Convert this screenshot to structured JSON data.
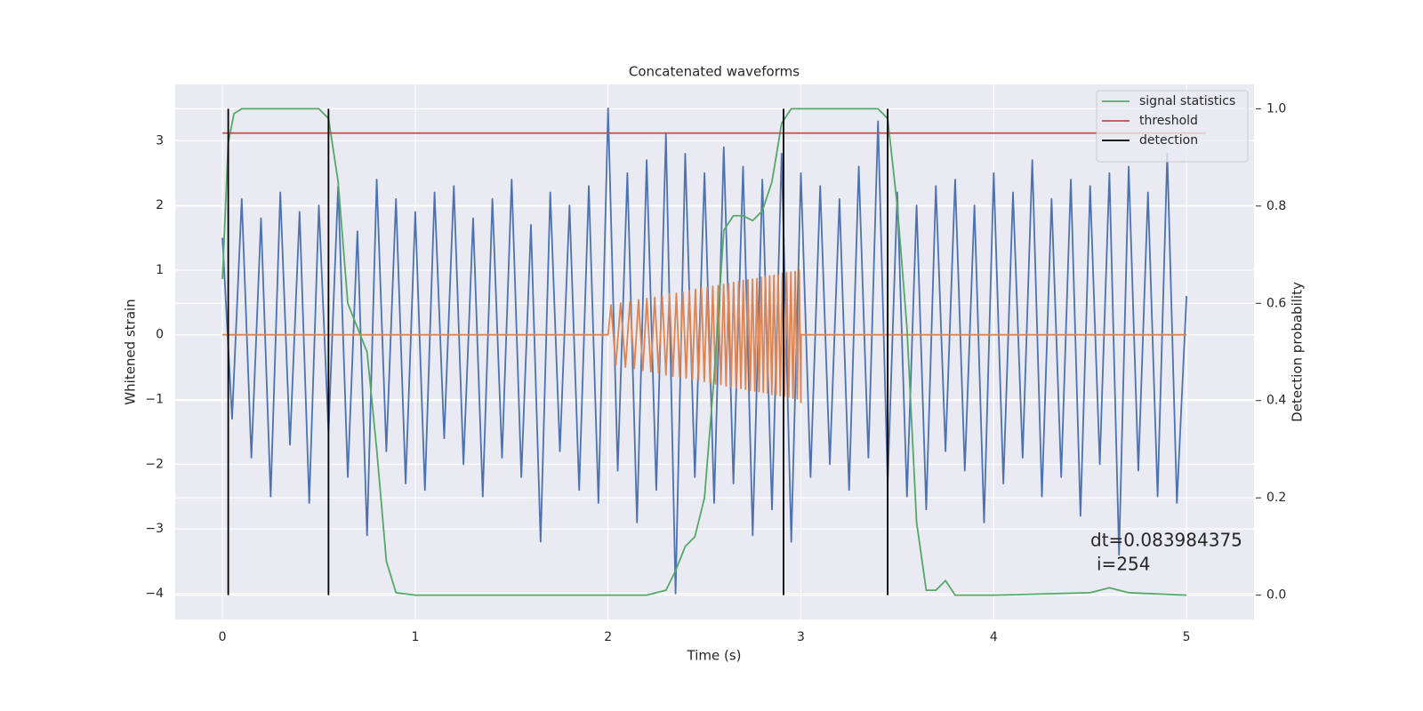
{
  "chart_data": {
    "type": "line",
    "title": "Concatenated waveforms",
    "xlabel": "Time (s)",
    "ylabel": "Whitened strain",
    "y2label": "Detection probability",
    "xlim": [
      -0.245,
      5.35
    ],
    "ylim": [
      -4.4,
      3.87
    ],
    "y2lim": [
      -0.05,
      1.05
    ],
    "xticks": [
      0,
      1,
      2,
      3,
      4,
      5
    ],
    "yticks": [
      {
        "value": -4,
        "label": "−4"
      },
      {
        "value": -3,
        "label": "−3"
      },
      {
        "value": -2,
        "label": "−2"
      },
      {
        "value": -1,
        "label": "−1"
      },
      0,
      1,
      2,
      3
    ],
    "y2ticks": [
      {
        "value": 0,
        "label": "0.0"
      },
      {
        "value": 0.2,
        "label": "0.2"
      },
      {
        "value": 0.4,
        "label": "0.4"
      },
      {
        "value": 0.6,
        "label": "0.6"
      },
      {
        "value": 0.8,
        "label": "0.8"
      },
      {
        "value": 1,
        "label": "1.0"
      }
    ],
    "grid": true,
    "legend_loc": "upper right",
    "series": [
      {
        "color": "#4c72b0",
        "axis": "y",
        "x": [
          0,
          0.05,
          0.1,
          0.15,
          0.2,
          0.25,
          0.3,
          0.35,
          0.4,
          0.45,
          0.5,
          0.55,
          0.6,
          0.65,
          0.7,
          0.75,
          0.8,
          0.85,
          0.9,
          0.95,
          1,
          1.05,
          1.1,
          1.15,
          1.2,
          1.25,
          1.3,
          1.35,
          1.4,
          1.45,
          1.5,
          1.55,
          1.6,
          1.65,
          1.7,
          1.75,
          1.8,
          1.85,
          1.9,
          1.95,
          2,
          2.05,
          2.1,
          2.15,
          2.2,
          2.25,
          2.3,
          2.35,
          2.4,
          2.45,
          2.5,
          2.55,
          2.6,
          2.65,
          2.7,
          2.75,
          2.8,
          2.85,
          2.9,
          2.95,
          3,
          3.05,
          3.1,
          3.15,
          3.2,
          3.25,
          3.3,
          3.35,
          3.4,
          3.45,
          3.5,
          3.55,
          3.6,
          3.65,
          3.7,
          3.75,
          3.8,
          3.85,
          3.9,
          3.95,
          4,
          4.05,
          4.1,
          4.15,
          4.2,
          4.25,
          4.3,
          4.35,
          4.4,
          4.45,
          4.5,
          4.55,
          4.6,
          4.65,
          4.7,
          4.75,
          4.8,
          4.85,
          4.9,
          4.95,
          5
        ],
        "values": [
          1.5,
          -1.3,
          2.1,
          -1.9,
          1.8,
          -2.5,
          2.2,
          -1.7,
          1.9,
          -2.6,
          2.0,
          -1.5,
          2.3,
          -2.2,
          1.6,
          -3.1,
          2.4,
          -1.8,
          2.1,
          -2.3,
          1.9,
          -2.4,
          2.2,
          -1.6,
          2.3,
          -2.0,
          1.8,
          -2.5,
          2.1,
          -1.9,
          2.4,
          -2.2,
          1.7,
          -3.2,
          2.2,
          -1.8,
          2.0,
          -2.4,
          2.3,
          -2.6,
          3.5,
          -2.1,
          2.5,
          -2.9,
          2.7,
          -2.4,
          3.1,
          -4.0,
          2.8,
          -2.2,
          2.5,
          -2.6,
          2.9,
          -2.3,
          2.6,
          -3.1,
          2.4,
          -2.7,
          2.8,
          -3.2,
          2.5,
          -2.2,
          2.3,
          -2.0,
          2.1,
          -2.4,
          2.6,
          -1.9,
          3.3,
          -2.3,
          2.2,
          -2.5,
          2.0,
          -2.7,
          2.3,
          -1.8,
          2.4,
          -2.1,
          2.0,
          -2.9,
          2.5,
          -2.3,
          2.2,
          -1.9,
          2.7,
          -2.5,
          2.1,
          -2.2,
          2.4,
          -2.8,
          2.3,
          -2.0,
          2.5,
          -3.4,
          2.6,
          -2.1,
          2.2,
          -2.5,
          2.8,
          -2.6,
          0.6
        ]
      },
      {
        "color": "#dd8452",
        "axis": "y",
        "x": [
          0,
          2.0,
          2.015,
          2.04,
          2.065,
          2.09,
          2.113,
          2.136,
          2.158,
          2.18,
          2.201,
          2.222,
          2.242,
          2.262,
          2.281,
          2.3,
          2.318,
          2.336,
          2.354,
          2.371,
          2.388,
          2.405,
          2.421,
          2.437,
          2.453,
          2.469,
          2.484,
          2.499,
          2.514,
          2.529,
          2.543,
          2.557,
          2.571,
          2.585,
          2.599,
          2.612,
          2.625,
          2.638,
          2.651,
          2.664,
          2.677,
          2.689,
          2.701,
          2.713,
          2.725,
          2.737,
          2.749,
          2.761,
          2.772,
          2.783,
          2.794,
          2.805,
          2.816,
          2.827,
          2.838,
          2.849,
          2.86,
          2.871,
          2.882,
          2.893,
          2.904,
          2.915,
          2.926,
          2.937,
          2.948,
          2.959,
          2.97,
          2.981,
          2.992,
          3.0,
          3.001,
          5.0
        ],
        "values": [
          0,
          0,
          0.46,
          -0.47,
          0.49,
          -0.5,
          0.51,
          -0.52,
          0.54,
          -0.55,
          0.56,
          -0.57,
          0.58,
          -0.59,
          0.6,
          -0.62,
          0.63,
          -0.64,
          0.64,
          -0.65,
          0.66,
          -0.67,
          0.68,
          -0.69,
          0.7,
          -0.71,
          0.72,
          -0.72,
          0.73,
          -0.74,
          0.75,
          -0.76,
          0.76,
          -0.77,
          0.78,
          -0.79,
          0.79,
          -0.8,
          0.81,
          -0.82,
          0.82,
          -0.83,
          0.84,
          -0.84,
          0.85,
          -0.86,
          0.86,
          -0.87,
          0.87,
          -0.88,
          0.89,
          -0.89,
          0.9,
          -0.9,
          0.91,
          -0.92,
          0.92,
          -0.93,
          0.93,
          -0.94,
          0.95,
          -0.95,
          0.96,
          -0.96,
          0.97,
          -0.98,
          0.98,
          -0.99,
          1.0,
          -1.05,
          0,
          0
        ]
      },
      {
        "name": "signal statistics",
        "color": "#55a868",
        "axis": "y2",
        "x": [
          0,
          0.03,
          0.06,
          0.1,
          0.5,
          0.55,
          0.6,
          0.65,
          0.7,
          0.75,
          0.8,
          0.85,
          0.9,
          1.0,
          2.2,
          2.3,
          2.35,
          2.4,
          2.45,
          2.5,
          2.55,
          2.6,
          2.65,
          2.7,
          2.75,
          2.8,
          2.85,
          2.9,
          2.95,
          3.4,
          3.45,
          3.5,
          3.55,
          3.6,
          3.65,
          3.7,
          3.75,
          3.8,
          4.0,
          4.5,
          4.6,
          4.7,
          5.0
        ],
        "values": [
          0.65,
          0.93,
          0.99,
          1.0,
          1.0,
          0.98,
          0.85,
          0.6,
          0.55,
          0.5,
          0.3,
          0.07,
          0.005,
          0,
          0,
          0.01,
          0.05,
          0.1,
          0.12,
          0.2,
          0.45,
          0.75,
          0.78,
          0.78,
          0.77,
          0.79,
          0.85,
          0.97,
          1.0,
          1.0,
          0.98,
          0.8,
          0.55,
          0.15,
          0.01,
          0.01,
          0.03,
          0.0,
          0.0,
          0.005,
          0.015,
          0.005,
          0.0
        ]
      },
      {
        "name": "threshold",
        "color": "#c44e52",
        "axis": "y2",
        "x": [
          0,
          5.1
        ],
        "values": [
          0.95,
          0.95
        ]
      }
    ],
    "detection": {
      "name": "detection",
      "color": "#000000",
      "x": [
        0.03,
        0.55,
        2.91,
        3.45
      ]
    },
    "annotation": [
      "dt=0.083984375",
      "i=254"
    ]
  }
}
